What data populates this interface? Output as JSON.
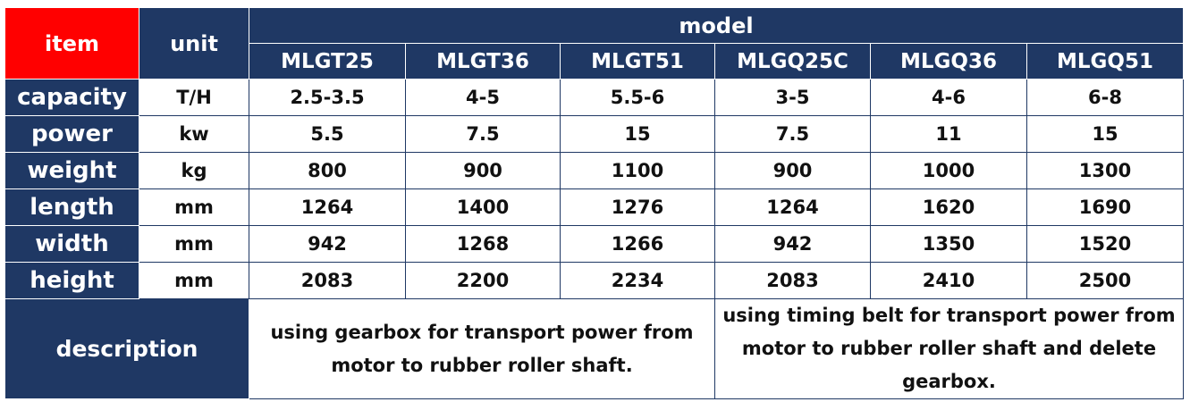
{
  "header": {
    "item": "item",
    "unit": "unit",
    "model": "model"
  },
  "models": [
    "MLGT25",
    "MLGT36",
    "MLGT51",
    "MLGQ25C",
    "MLGQ36",
    "MLGQ51"
  ],
  "rows": [
    {
      "label": "capacity",
      "unit": "T/H",
      "values": [
        "2.5-3.5",
        "4-5",
        "5.5-6",
        "3-5",
        "4-6",
        "6-8"
      ]
    },
    {
      "label": "power",
      "unit": "kw",
      "values": [
        "5.5",
        "7.5",
        "15",
        "7.5",
        "11",
        "15"
      ]
    },
    {
      "label": "weight",
      "unit": "kg",
      "values": [
        "800",
        "900",
        "1100",
        "900",
        "1000",
        "1300"
      ]
    },
    {
      "label": "length",
      "unit": "mm",
      "values": [
        "1264",
        "1400",
        "1276",
        "1264",
        "1620",
        "1690"
      ]
    },
    {
      "label": "width",
      "unit": "mm",
      "values": [
        "942",
        "1268",
        "1266",
        "942",
        "1350",
        "1520"
      ]
    },
    {
      "label": "height",
      "unit": "mm",
      "values": [
        "2083",
        "2200",
        "2234",
        "2083",
        "2410",
        "2500"
      ]
    }
  ],
  "description": {
    "label": "description",
    "gearbox_text": "using gearbox for transport power from motor to rubber roller shaft.",
    "belt_text": "using timing belt for transport power from motor to rubber roller shaft  and delete gearbox."
  },
  "colors": {
    "navy": "#1f3864",
    "red": "#ff0000",
    "white": "#ffffff"
  }
}
